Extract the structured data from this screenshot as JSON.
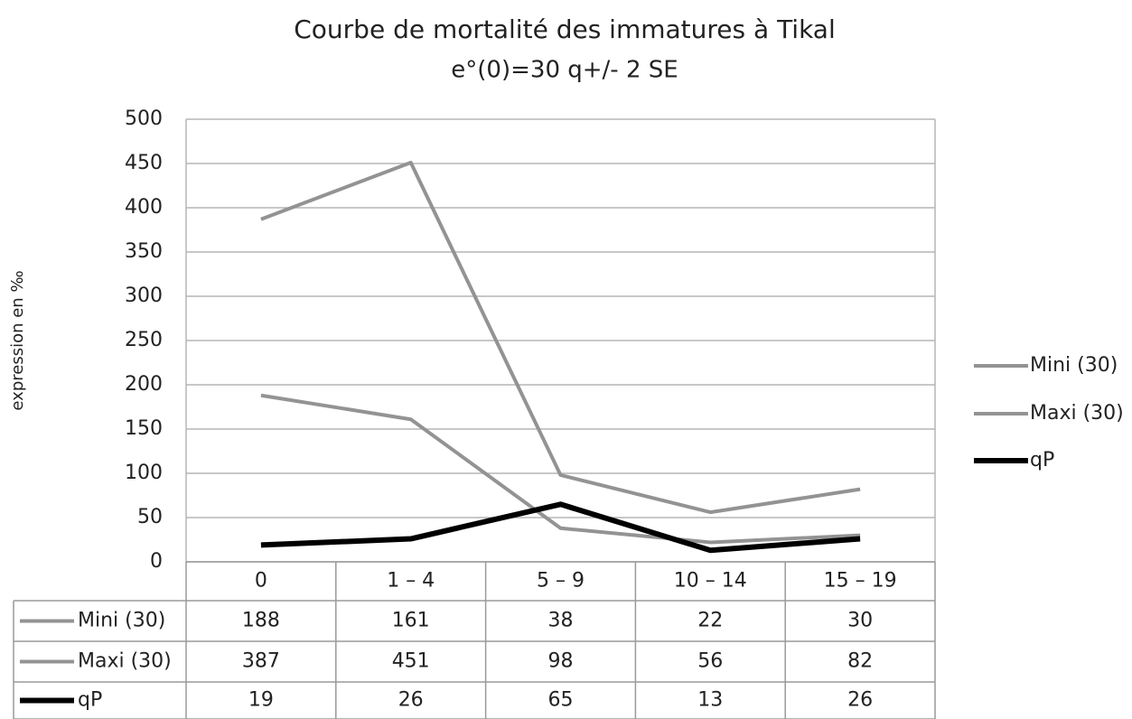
{
  "chart_data": {
    "type": "line",
    "title": "Courbe de mortalité des immatures à Tikal",
    "subtitle": "e°(0)=30 q+/- 2 SE",
    "y_label": "expression en ‰",
    "categories": [
      "0",
      "1 – 4",
      "5 – 9",
      "10 – 14",
      "15 – 19"
    ],
    "series": [
      {
        "name": "Mini (30)",
        "color": "#939393",
        "values": [
          188,
          161,
          38,
          22,
          30
        ]
      },
      {
        "name": "Maxi (30)",
        "color": "#939393",
        "values": [
          387,
          451,
          98,
          56,
          82
        ]
      },
      {
        "name": "qP",
        "color": "#000000",
        "values": [
          19,
          26,
          65,
          13,
          26
        ]
      }
    ],
    "ylim": [
      0,
      500
    ],
    "yticks": [
      0,
      50,
      100,
      150,
      200,
      250,
      300,
      350,
      400,
      450,
      500
    ],
    "grid": true,
    "legend": "right",
    "data_table": true
  }
}
